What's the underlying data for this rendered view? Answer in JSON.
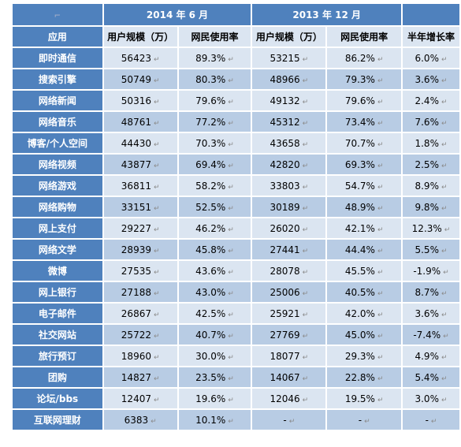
{
  "header": {
    "group_2014": "2014 年 6 月",
    "group_2013": "2013 年 12 月",
    "col_app": "应用",
    "col_users_2014": "用户规模（万）",
    "col_rate_2014": "网民使用率",
    "col_users_2013": "用户规模（万）",
    "col_rate_2013": "网民使用率",
    "col_growth": "半年增长率"
  },
  "rows": [
    {
      "app": "即时通信",
      "users_2014": "56423",
      "rate_2014": "89.3%",
      "users_2013": "53215",
      "rate_2013": "86.2%",
      "growth": "6.0%"
    },
    {
      "app": "搜索引擎",
      "users_2014": "50749",
      "rate_2014": "80.3%",
      "users_2013": "48966",
      "rate_2013": "79.3%",
      "growth": "3.6%"
    },
    {
      "app": "网络新闻",
      "users_2014": "50316",
      "rate_2014": "79.6%",
      "users_2013": "49132",
      "rate_2013": "79.6%",
      "growth": "2.4%"
    },
    {
      "app": "网络音乐",
      "users_2014": "48761",
      "rate_2014": "77.2%",
      "users_2013": "45312",
      "rate_2013": "73.4%",
      "growth": "7.6%"
    },
    {
      "app": "博客/个人空间",
      "users_2014": "44430",
      "rate_2014": "70.3%",
      "users_2013": "43658",
      "rate_2013": "70.7%",
      "growth": "1.8%"
    },
    {
      "app": "网络视频",
      "users_2014": "43877",
      "rate_2014": "69.4%",
      "users_2013": "42820",
      "rate_2013": "69.3%",
      "growth": "2.5%"
    },
    {
      "app": "网络游戏",
      "users_2014": "36811",
      "rate_2014": "58.2%",
      "users_2013": "33803",
      "rate_2013": "54.7%",
      "growth": "8.9%"
    },
    {
      "app": "网络购物",
      "users_2014": "33151",
      "rate_2014": "52.5%",
      "users_2013": "30189",
      "rate_2013": "48.9%",
      "growth": "9.8%"
    },
    {
      "app": "网上支付",
      "users_2014": "29227",
      "rate_2014": "46.2%",
      "users_2013": "26020",
      "rate_2013": "42.1%",
      "growth": "12.3%"
    },
    {
      "app": "网络文学",
      "users_2014": "28939",
      "rate_2014": "45.8%",
      "users_2013": "27441",
      "rate_2013": "44.4%",
      "growth": "5.5%"
    },
    {
      "app": "微博",
      "users_2014": "27535",
      "rate_2014": "43.6%",
      "users_2013": "28078",
      "rate_2013": "45.5%",
      "growth": "-1.9%"
    },
    {
      "app": "网上银行",
      "users_2014": "27188",
      "rate_2014": "43.0%",
      "users_2013": "25006",
      "rate_2013": "40.5%",
      "growth": "8.7%"
    },
    {
      "app": "电子邮件",
      "users_2014": "26867",
      "rate_2014": "42.5%",
      "users_2013": "25921",
      "rate_2013": "42.0%",
      "growth": "3.6%"
    },
    {
      "app": "社交网站",
      "users_2014": "25722",
      "rate_2014": "40.7%",
      "users_2013": "27769",
      "rate_2013": "45.0%",
      "growth": "-7.4%"
    },
    {
      "app": "旅行预订",
      "users_2014": "18960",
      "rate_2014": "30.0%",
      "users_2013": "18077",
      "rate_2013": "29.3%",
      "growth": "4.9%"
    },
    {
      "app": "团购",
      "users_2014": "14827",
      "rate_2014": "23.5%",
      "users_2013": "14067",
      "rate_2013": "22.8%",
      "growth": "5.4%"
    },
    {
      "app": "论坛/bbs",
      "users_2014": "12407",
      "rate_2014": "19.6%",
      "users_2013": "12046",
      "rate_2013": "19.5%",
      "growth": "3.0%"
    },
    {
      "app": "互联网理财",
      "users_2014": "6383",
      "rate_2014": "10.1%",
      "users_2013": "-",
      "rate_2013": "-",
      "growth": "-"
    }
  ],
  "marks": {
    "paragraph": "↵",
    "corner": "⌐"
  },
  "colors": {
    "header_blue": "#4f81bd",
    "row_light": "#dbe5f1",
    "row_mid": "#b8cce4"
  }
}
